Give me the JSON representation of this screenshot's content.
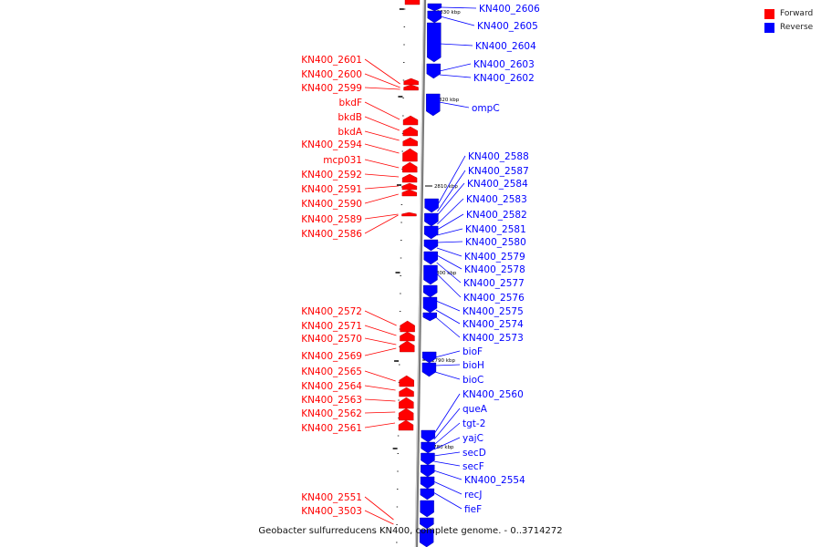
{
  "colors": {
    "forward": "#ff0000",
    "reverse": "#0000ff",
    "backbone": "#888888"
  },
  "legend": [
    {
      "label": "Forward",
      "color": "#ff0000"
    },
    {
      "label": "Reverse",
      "color": "#0000ff"
    }
  ],
  "caption": "Geobacter sulfurreducens KN400, complete genome. - 0..3714272",
  "scale_labels": [
    "2830 kbp",
    "2820 kbp",
    "2810 kbp",
    "2800 kbp",
    "2790 kbp",
    "2780 kbp"
  ],
  "forward_labels": [
    "KN400_2601",
    "KN400_2600",
    "KN400_2599",
    "bkdF",
    "bkdB",
    "bkdA",
    "KN400_2594",
    "mcp031",
    "KN400_2592",
    "KN400_2591",
    "KN400_2590",
    "KN400_2589",
    "KN400_2586",
    "KN400_2572",
    "KN400_2571",
    "KN400_2570",
    "KN400_2569",
    "KN400_2565",
    "KN400_2564",
    "KN400_2563",
    "KN400_2562",
    "KN400_2561",
    "KN400_2551",
    "KN400_3503"
  ],
  "reverse_labels": [
    "KN400_2606",
    "KN400_2605",
    "KN400_2604",
    "KN400_2603",
    "KN400_2602",
    "ompC",
    "KN400_2588",
    "KN400_2587",
    "KN400_2584",
    "KN400_2583",
    "KN400_2582",
    "KN400_2581",
    "KN400_2580",
    "KN400_2579",
    "KN400_2578",
    "KN400_2577",
    "KN400_2576",
    "KN400_2575",
    "KN400_2574",
    "KN400_2573",
    "bioF",
    "bioH",
    "bioC",
    "KN400_2560",
    "queA",
    "tgt-2",
    "yajC",
    "secD",
    "secF",
    "KN400_2554",
    "recJ",
    "fieF"
  ]
}
